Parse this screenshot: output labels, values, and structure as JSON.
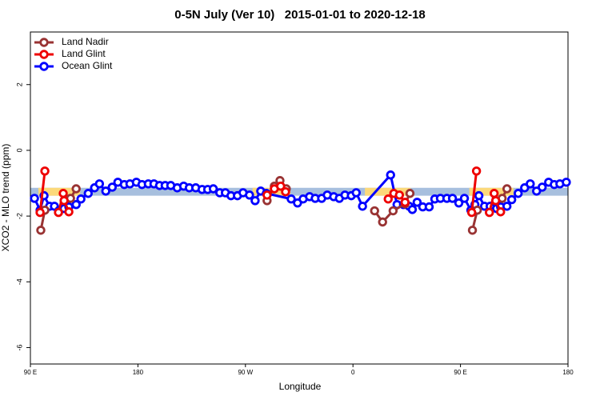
{
  "chart_data": {
    "type": "line",
    "title": "0-5N July (Ver 10)   2015-01-01 to 2020-12-18",
    "x_label": "Longitude",
    "y_label": "XCO2 - MLO trend (ppm)",
    "xlim": [
      90,
      540
    ],
    "ylim": [
      -6.5,
      3.6
    ],
    "xticks": [
      {
        "value": 90,
        "label": "90 E"
      },
      {
        "value": 180,
        "label": "180"
      },
      {
        "value": 270,
        "label": "90 W"
      },
      {
        "value": 360,
        "label": "0"
      },
      {
        "value": 450,
        "label": "90 E"
      },
      {
        "value": 540,
        "label": "180"
      }
    ],
    "yticks": [
      -6,
      -4,
      -2,
      0,
      2
    ],
    "legend": "top-left",
    "bands": [
      {
        "x": [
          90,
          540
        ],
        "y": [
          -1.38,
          -1.14
        ],
        "color": "#a7bfde"
      },
      {
        "x": [
          96.7,
          131.6
        ],
        "y": [
          -1.38,
          -1.14
        ],
        "color": "#fcd97a"
      },
      {
        "x": [
          276,
          307.6
        ],
        "y": [
          -1.38,
          -1.14
        ],
        "color": "#fcd97a"
      },
      {
        "x": [
          370,
          408.3
        ],
        "y": [
          -1.38,
          -1.14
        ],
        "color": "#fcd97a"
      },
      {
        "x": [
          457.4,
          494.3
        ],
        "y": [
          -1.38,
          -1.14
        ],
        "color": "#fcd97a"
      }
    ],
    "series": [
      {
        "name": "Land Nadir",
        "color": "#993333",
        "x": [
          98.7,
          102.1,
          null,
          123.6,
          128.3,
          null,
          288.1,
          294.2,
          298.9,
          304.2,
          null,
          378.1,
          384.8,
          393.6,
          403.6,
          407.7,
          null,
          460,
          464.1,
          null,
          484.9,
          488.9
        ],
        "values": [
          -2.43,
          -1.82,
          null,
          -1.46,
          -1.17,
          null,
          -1.53,
          -1.09,
          -0.92,
          -1.17,
          null,
          -1.84,
          -2.18,
          -1.84,
          -1.63,
          -1.31,
          null,
          -2.43,
          -1.82,
          null,
          -1.46,
          -1.17
        ]
      },
      {
        "name": "Land Glint",
        "color": "#ee0000",
        "x": [
          98.1,
          102.1,
          null,
          113.5,
          117.5,
          118.2,
          122.2,
          null,
          288.1,
          294.2,
          299.5,
          303.6,
          null,
          389.5,
          394.2,
          398.9,
          403.6,
          null,
          459.4,
          463.4,
          null,
          474.2,
          478.2,
          479.5,
          483.6
        ],
        "values": [
          -1.89,
          -0.63,
          null,
          -1.89,
          -1.31,
          -1.53,
          -1.87,
          null,
          -1.36,
          -1.17,
          -1.09,
          -1.26,
          null,
          -1.48,
          -1.31,
          -1.36,
          -1.58,
          null,
          -1.89,
          -0.63,
          null,
          -1.89,
          -1.31,
          -1.53,
          -1.87
        ]
      },
      {
        "name": "Ocean Glint",
        "color": "#0000ff",
        "x": [
          93.4,
          98.1,
          101.4,
          106.1,
          110.1,
          114.2,
          118.2,
          122.2,
          128.3,
          132.3,
          138.4,
          143.7,
          147.8,
          153.1,
          158.5,
          163.2,
          168.6,
          173.3,
          178.7,
          183.4,
          188.7,
          193.4,
          198.1,
          202.8,
          207.5,
          212.9,
          218.3,
          223,
          228.4,
          233.7,
          238.4,
          243.1,
          248.5,
          253.2,
          257.9,
          263.3,
          268,
          273.4,
          278.1,
          282.8,
          287.5,
          308.3,
          313.6,
          318.3,
          323.7,
          328.4,
          333.8,
          338.5,
          343.9,
          348.6,
          353.3,
          358.6,
          362.7,
          368,
          391.5,
          396.9,
          402.3,
          407,
          409.7,
          413.7,
          418.4,
          423.8,
          428.5,
          433.2,
          438.6,
          443.3,
          448.6,
          453.3,
          458.7,
          462.1,
          465.4,
          470.1,
          474.8,
          480.2,
          483.6,
          488.9,
          492.9,
          498.3,
          503.7,
          508.4,
          513.7,
          518.4,
          523.8,
          528.5,
          533.2,
          538.6
        ],
        "values": [
          -1.46,
          -1.82,
          -1.38,
          -1.7,
          -1.7,
          -1.82,
          -1.77,
          -1.72,
          -1.65,
          -1.48,
          -1.31,
          -1.14,
          -1.02,
          -1.24,
          -1.12,
          -0.97,
          -1.04,
          -1.02,
          -0.97,
          -1.04,
          -1.02,
          -1.02,
          -1.07,
          -1.07,
          -1.07,
          -1.14,
          -1.09,
          -1.14,
          -1.14,
          -1.19,
          -1.19,
          -1.17,
          -1.29,
          -1.29,
          -1.38,
          -1.38,
          -1.29,
          -1.36,
          -1.53,
          -1.24,
          -1.31,
          -1.48,
          -1.6,
          -1.48,
          -1.41,
          -1.46,
          -1.46,
          -1.36,
          -1.41,
          -1.46,
          -1.36,
          -1.38,
          -1.29,
          -1.7,
          -0.75,
          -1.65,
          -1.65,
          -1.7,
          -1.8,
          -1.58,
          -1.72,
          -1.72,
          -1.48,
          -1.46,
          -1.46,
          -1.46,
          -1.6,
          -1.46,
          -1.82,
          -1.65,
          -1.38,
          -1.7,
          -1.7,
          -1.77,
          -1.72,
          -1.7,
          -1.5,
          -1.31,
          -1.14,
          -1.02,
          -1.24,
          -1.12,
          -0.97,
          -1.04,
          -1.02,
          -0.97
        ]
      }
    ]
  }
}
